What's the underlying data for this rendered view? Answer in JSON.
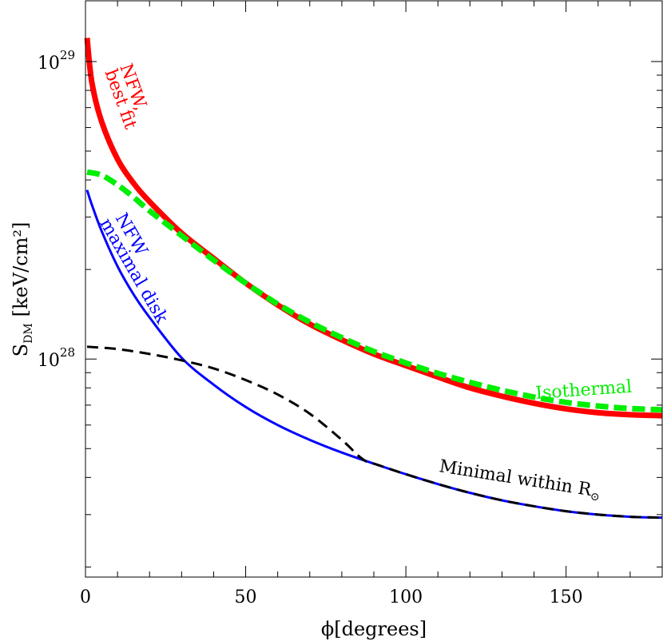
{
  "chart_data": {
    "type": "line",
    "xlabel": "ϕ[degrees]",
    "ylabel": "S_DM [keV/cm²]",
    "ylabel_main": "S",
    "ylabel_sub": "DM",
    "ylabel_units": "[keV/cm²]",
    "xlim": [
      0,
      180
    ],
    "ylim": [
      1.85e+27,
      1.6e+29
    ],
    "yscale": "log",
    "x_ticks": [
      0,
      50,
      100,
      150
    ],
    "x_tick_labels": [
      "0",
      "50",
      "100",
      "150"
    ],
    "y_tick_labels": [
      {
        "value": 1e+28,
        "base": "10",
        "exp": "28"
      },
      {
        "value": 1e+29,
        "base": "10",
        "exp": "29"
      }
    ],
    "grid": false,
    "series": [
      {
        "name": "NFW, best fit",
        "color": "#ff0000",
        "style": "solid-thick",
        "x": [
          0.5,
          2,
          5,
          10,
          15,
          20,
          30,
          40,
          50,
          60,
          70,
          80,
          90,
          100,
          110,
          120,
          130,
          140,
          150,
          160,
          170,
          180
        ],
        "y": [
          1.2e+29,
          8.5e+28,
          6.3e+28,
          4.7e+28,
          3.9e+28,
          3.38e+28,
          2.65e+28,
          2.18e+28,
          1.8e+28,
          1.52e+28,
          1.31e+28,
          1.16e+28,
          1.04e+28,
          9.5e+27,
          8.7e+27,
          8e+27,
          7.5e+27,
          7.1e+27,
          6.8e+27,
          6.6e+27,
          6.5e+27,
          6.45e+27
        ]
      },
      {
        "name": "Isothermal",
        "color": "#00ee00",
        "style": "dashed-thick",
        "x": [
          0.5,
          5,
          10,
          15,
          20,
          30,
          40,
          50,
          60,
          70,
          80,
          90,
          100,
          110,
          120,
          130,
          140,
          150,
          160,
          170,
          180
        ],
        "y": [
          4.25e+28,
          4.15e+28,
          3.85e+28,
          3.5e+28,
          3.15e+28,
          2.6e+28,
          2.15e+28,
          1.8e+28,
          1.53e+28,
          1.33e+28,
          1.18e+28,
          1.06e+28,
          9.7e+27,
          8.95e+27,
          8.35e+27,
          7.85e+27,
          7.45e+27,
          7.15e+27,
          6.95e+27,
          6.82e+27,
          6.75e+27
        ]
      },
      {
        "name": "NFW maximal disk",
        "color": "#0000ff",
        "style": "solid",
        "x": [
          0.5,
          2,
          5,
          10,
          15,
          20,
          30,
          40,
          50,
          60,
          70,
          80,
          90,
          100,
          110,
          120,
          130,
          140,
          150,
          160,
          170,
          180
        ],
        "y": [
          3.7e+28,
          3.3e+28,
          2.7e+28,
          2.05e+28,
          1.65e+28,
          1.38e+28,
          1.01e+28,
          8.2e+27,
          6.9e+27,
          6e+27,
          5.35e+27,
          4.85e+27,
          4.45e+27,
          4.1e+27,
          3.8e+27,
          3.55e+27,
          3.35e+27,
          3.2e+27,
          3.08e+27,
          3e+27,
          2.95e+27,
          2.93e+27
        ]
      },
      {
        "name": "Minimal within R⊙",
        "color": "#000000",
        "style": "dashed",
        "x": [
          0.5,
          10,
          20,
          30,
          40,
          50,
          60,
          70,
          80,
          85,
          88,
          90,
          100,
          110,
          120,
          130,
          140,
          150,
          160,
          170,
          180
        ],
        "y": [
          1.1e+28,
          1.08e+28,
          1.04e+28,
          9.9e+27,
          9.3e+27,
          8.5e+27,
          7.6e+27,
          6.55e+27,
          5.35e+27,
          4.75e+27,
          4.5e+27,
          4.45e+27,
          4.1e+27,
          3.8e+27,
          3.55e+27,
          3.35e+27,
          3.2e+27,
          3.08e+27,
          3e+27,
          2.95e+27,
          2.93e+27
        ]
      }
    ],
    "annotations": [
      {
        "id": "nfw-best-fit-line1",
        "text": "NFW,",
        "color": "#ff0000"
      },
      {
        "id": "nfw-best-fit-line2",
        "text": "best fit",
        "color": "#ff0000"
      },
      {
        "id": "nfw-max-disk-line1",
        "text": "NFW",
        "color": "#0000ff"
      },
      {
        "id": "nfw-max-disk-line2",
        "text": "maximal disk",
        "color": "#0000ff"
      },
      {
        "id": "isothermal",
        "text": "Isothermal",
        "color": "#00ee00"
      },
      {
        "id": "minimal",
        "text": "Minimal within R",
        "sub": "⊙",
        "color": "#000000"
      }
    ]
  }
}
